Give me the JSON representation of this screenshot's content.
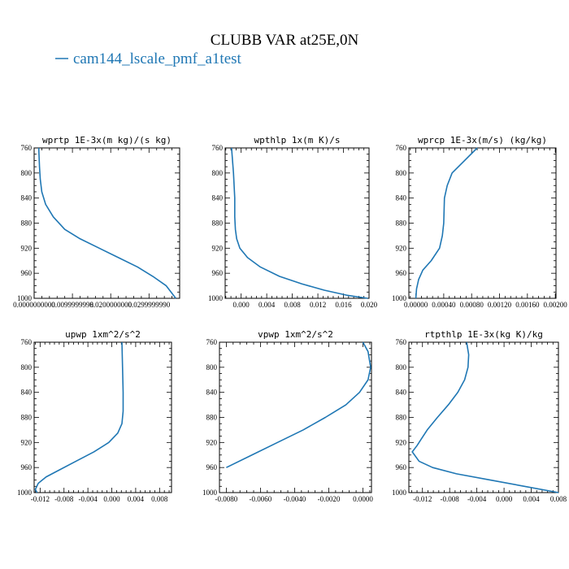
{
  "figure": {
    "title": "CLUBB VAR at25E,0N",
    "legend_label": "cam144_lscale_pmf_a1test",
    "line_color": "#1f77b4"
  },
  "chart_data": [
    {
      "type": "line",
      "title": "wprtp  1E-3x(m kg)/(s kg)",
      "xlim": [
        0.0,
        0.038
      ],
      "ylim": [
        760,
        1000
      ],
      "y_inverted": true,
      "xtick_values": [
        0.0,
        0.0099999998,
        0.02,
        0.029999999
      ],
      "xtick_labels": [
        "0.0000000000",
        "0.0099999998",
        "0.0200000000",
        "0.0299999990"
      ],
      "ytick_values": [
        760,
        800,
        840,
        880,
        920,
        960,
        1000
      ],
      "ytick_labels": [
        "760",
        "800",
        "840",
        "880",
        "920",
        "960",
        "1000"
      ],
      "series": [
        {
          "x": [
            0.0012,
            0.0014,
            0.0016,
            0.002,
            0.003,
            0.005,
            0.008,
            0.012,
            0.017,
            0.022,
            0.027,
            0.031,
            0.0345,
            0.037
          ],
          "y": [
            760,
            790,
            810,
            830,
            850,
            870,
            890,
            905,
            920,
            935,
            950,
            965,
            980,
            1000
          ]
        }
      ]
    },
    {
      "type": "line",
      "title": "wpthlp  1x(m K)/s",
      "xlim": [
        -0.0025,
        0.02
      ],
      "ylim": [
        760,
        1000
      ],
      "y_inverted": true,
      "xtick_values": [
        0.0,
        0.004,
        0.008,
        0.012,
        0.016,
        0.02
      ],
      "xtick_labels": [
        "0.000",
        "0.004",
        "0.008",
        "0.012",
        "0.016",
        "0.020"
      ],
      "ytick_values": [
        760,
        800,
        840,
        880,
        920,
        960,
        1000
      ],
      "ytick_labels": [
        "760",
        "800",
        "840",
        "880",
        "920",
        "960",
        "1000"
      ],
      "series": [
        {
          "x": [
            -0.0015,
            -0.0012,
            -0.001,
            -0.001,
            -0.0009,
            -0.0007,
            -0.0002,
            0.001,
            0.003,
            0.006,
            0.0095,
            0.013,
            0.0165,
            0.0198
          ],
          "y": [
            760,
            800,
            840,
            870,
            890,
            905,
            920,
            935,
            950,
            965,
            977,
            987,
            995,
            1000
          ]
        }
      ]
    },
    {
      "type": "line",
      "title": "wprcp  1E-3x(m/s) (kg/kg)",
      "xlim": [
        -0.0001,
        0.00201
      ],
      "ylim": [
        760,
        1000
      ],
      "y_inverted": true,
      "xtick_values": [
        0.0,
        0.0004,
        0.0008,
        0.0012,
        0.0016,
        0.002
      ],
      "xtick_labels": [
        "0.00000",
        "0.00040",
        "0.00080",
        "0.00120",
        "0.00160",
        "0.00200"
      ],
      "ytick_values": [
        760,
        800,
        840,
        880,
        920,
        960,
        1000
      ],
      "ytick_labels": [
        "760",
        "800",
        "840",
        "880",
        "920",
        "960",
        "1000"
      ],
      "series": [
        {
          "x": [
            0.00088,
            0.0007,
            0.00052,
            0.00045,
            0.00041,
            0.0004,
            0.00038,
            0.00034,
            0.00022,
            0.0001,
            4e-05,
            1e-05,
            0.0
          ],
          "y": [
            760,
            780,
            800,
            820,
            840,
            880,
            900,
            920,
            940,
            955,
            970,
            985,
            1000
          ]
        }
      ]
    },
    {
      "type": "line",
      "title": "upwp  1xm^2/s^2",
      "xlim": [
        -0.013,
        0.01
      ],
      "ylim": [
        760,
        1000
      ],
      "y_inverted": true,
      "xtick_values": [
        -0.012,
        -0.008,
        -0.004,
        0.0,
        0.004,
        0.008
      ],
      "xtick_labels": [
        "-0.012",
        "-0.008",
        "-0.004",
        "0.000",
        "0.004",
        "0.008"
      ],
      "ytick_values": [
        760,
        800,
        840,
        880,
        920,
        960,
        1000
      ],
      "ytick_labels": [
        "760",
        "800",
        "840",
        "880",
        "920",
        "960",
        "1000"
      ],
      "series": [
        {
          "x": [
            0.0017,
            0.0018,
            0.0019,
            0.0019,
            0.0017,
            0.001,
            -0.0005,
            -0.003,
            -0.006,
            -0.009,
            -0.011,
            -0.0123,
            -0.0128,
            -0.0125
          ],
          "y": [
            760,
            800,
            840,
            870,
            890,
            905,
            920,
            935,
            950,
            965,
            975,
            985,
            995,
            1000
          ]
        }
      ]
    },
    {
      "type": "line",
      "title": "vpwp  1xm^2/s^2",
      "xlim": [
        -0.0084,
        0.0005
      ],
      "ylim": [
        760,
        1000
      ],
      "y_inverted": true,
      "xtick_values": [
        -0.008,
        -0.006,
        -0.004,
        -0.002,
        0.0
      ],
      "xtick_labels": [
        "-0.0080",
        "-0.0060",
        "-0.0040",
        "-0.0020",
        "0.0000"
      ],
      "ytick_values": [
        760,
        800,
        840,
        880,
        920,
        960,
        1000
      ],
      "ytick_labels": [
        "760",
        "800",
        "840",
        "880",
        "920",
        "960",
        "1000"
      ],
      "series": [
        {
          "x": [
            0.0,
            0.0003,
            0.00045,
            0.0003,
            -0.0002,
            -0.001,
            -0.0022,
            -0.0035,
            -0.005,
            -0.0065,
            -0.008
          ],
          "y": [
            760,
            775,
            800,
            820,
            840,
            860,
            880,
            900,
            920,
            940,
            960
          ]
        }
      ]
    },
    {
      "type": "line",
      "title": "rtpthlp  1E-3x(kg K)/kg",
      "xlim": [
        -0.014,
        0.008
      ],
      "ylim": [
        760,
        1000
      ],
      "y_inverted": true,
      "xtick_values": [
        -0.012,
        -0.008,
        -0.004,
        0.0,
        0.004,
        0.008
      ],
      "xtick_labels": [
        "-0.012",
        "-0.008",
        "-0.004",
        "0.000",
        "0.004",
        "0.008"
      ],
      "ytick_values": [
        760,
        800,
        840,
        880,
        920,
        960,
        1000
      ],
      "ytick_labels": [
        "760",
        "800",
        "840",
        "880",
        "920",
        "960",
        "1000"
      ],
      "series": [
        {
          "x": [
            -0.0055,
            -0.0052,
            -0.0053,
            -0.0058,
            -0.0068,
            -0.0082,
            -0.0098,
            -0.0113,
            -0.0122,
            -0.0128,
            -0.0135,
            -0.0125,
            -0.0105,
            -0.007,
            -0.002,
            0.003,
            0.008
          ],
          "y": [
            760,
            780,
            800,
            820,
            840,
            860,
            880,
            900,
            915,
            925,
            935,
            950,
            960,
            970,
            980,
            990,
            1000
          ]
        }
      ]
    }
  ]
}
